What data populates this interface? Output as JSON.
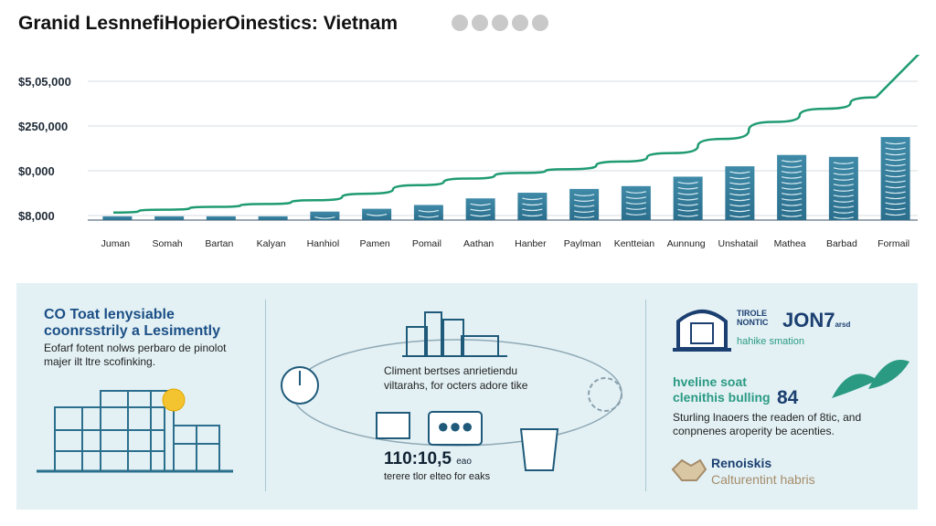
{
  "header": {
    "title": "Granid LesnnefiHopierOinestics: Vietnam"
  },
  "colors": {
    "bar": "#3f8aa8",
    "bar_dark": "#2b6f8d",
    "line": "#1f9b72",
    "axis": "#7a8a99",
    "accent_blue": "#1b4f86",
    "accent_teal": "#2a9a82",
    "panel_bg": "#e3f1f5"
  },
  "chart_data": {
    "type": "bar",
    "y_tick_labels": [
      "$5,05,000",
      "$250,000",
      "$0,000",
      "$8,000"
    ],
    "categories": [
      "Juman",
      "Somah",
      "Bartan",
      "Kalyan",
      "Hanhiol",
      "Pamen",
      "Pomail",
      "Aathan",
      "Hanber",
      "Paylman",
      "Kentteian",
      "Aunnung",
      "Unshatail",
      "Mathea",
      "Barbad",
      "Formail"
    ],
    "values": [
      4,
      4,
      4,
      4,
      9,
      12,
      16,
      23,
      29,
      33,
      36,
      46,
      57,
      69,
      67,
      88
    ],
    "trend_values": [
      8,
      11,
      14,
      17,
      21,
      28,
      37,
      44,
      50,
      54,
      62,
      71,
      86,
      104,
      118,
      130
    ],
    "trend_arrow": true,
    "ylim": [
      0,
      150
    ],
    "legend": false,
    "grid": true
  },
  "infographic": {
    "left": {
      "heading": [
        "CO Toat lenysiable",
        "coonrsstrily a Lesimently"
      ],
      "body": [
        "Eofarf fotent nolws perbaro de pinolot",
        "majer ilt ltre scofinking."
      ]
    },
    "middle": {
      "caption": [
        "Climent bertses anrietiendu",
        "viltarahs, for octers adore tike"
      ],
      "number": "110:10,5",
      "number_unit": "eao",
      "number_caption": "terere tlor elteo for eaks"
    },
    "right": {
      "badge_small": [
        "TIROLE",
        "NONTIC"
      ],
      "badge_big": "JON7",
      "badge_suffix": "arsd",
      "badge_caption": "hahike smation",
      "heading": [
        "hveline soat",
        "clenithis bulling"
      ],
      "stat": "84",
      "body": [
        "Sturling lnaoers the readen of 8tic, and",
        "conpnenes aroperity be acenties."
      ],
      "footer_title": "Renoiskis",
      "footer_sub": "Calturentint habris"
    }
  }
}
